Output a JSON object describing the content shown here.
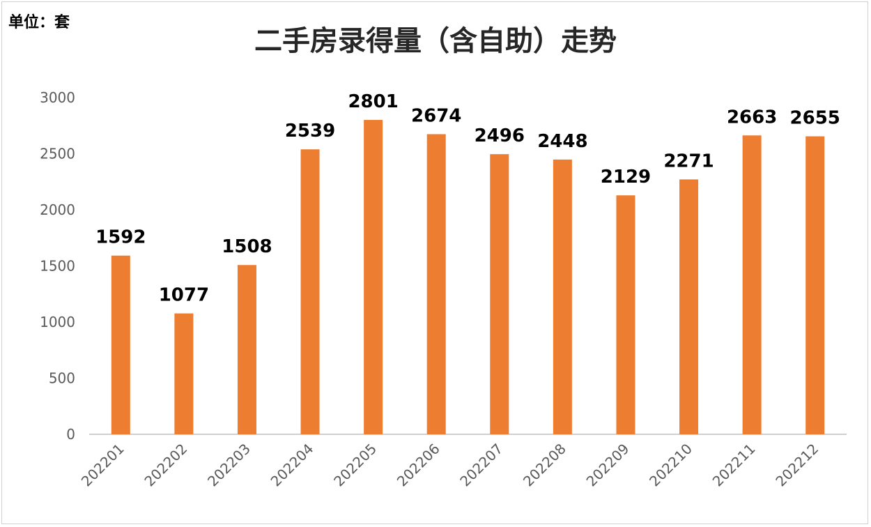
{
  "chart_data": {
    "type": "bar",
    "title": "二手房录得量（含自助）走势",
    "unit_label": "单位：套",
    "xlabel": "",
    "ylabel": "",
    "ylim": [
      0,
      3000
    ],
    "yticks": [
      0,
      500,
      1000,
      1500,
      2000,
      2500,
      3000
    ],
    "categories": [
      "202201",
      "202202",
      "202203",
      "202204",
      "202205",
      "202206",
      "202207",
      "202208",
      "202209",
      "202210",
      "202211",
      "202212"
    ],
    "values": [
      1592,
      1077,
      1508,
      2539,
      2801,
      2674,
      2496,
      2448,
      2129,
      2271,
      2663,
      2655
    ],
    "bar_color": "#ED7D31",
    "axis_color": "#bfbfbf",
    "grid": false,
    "legend": "none",
    "data_labels": true
  }
}
